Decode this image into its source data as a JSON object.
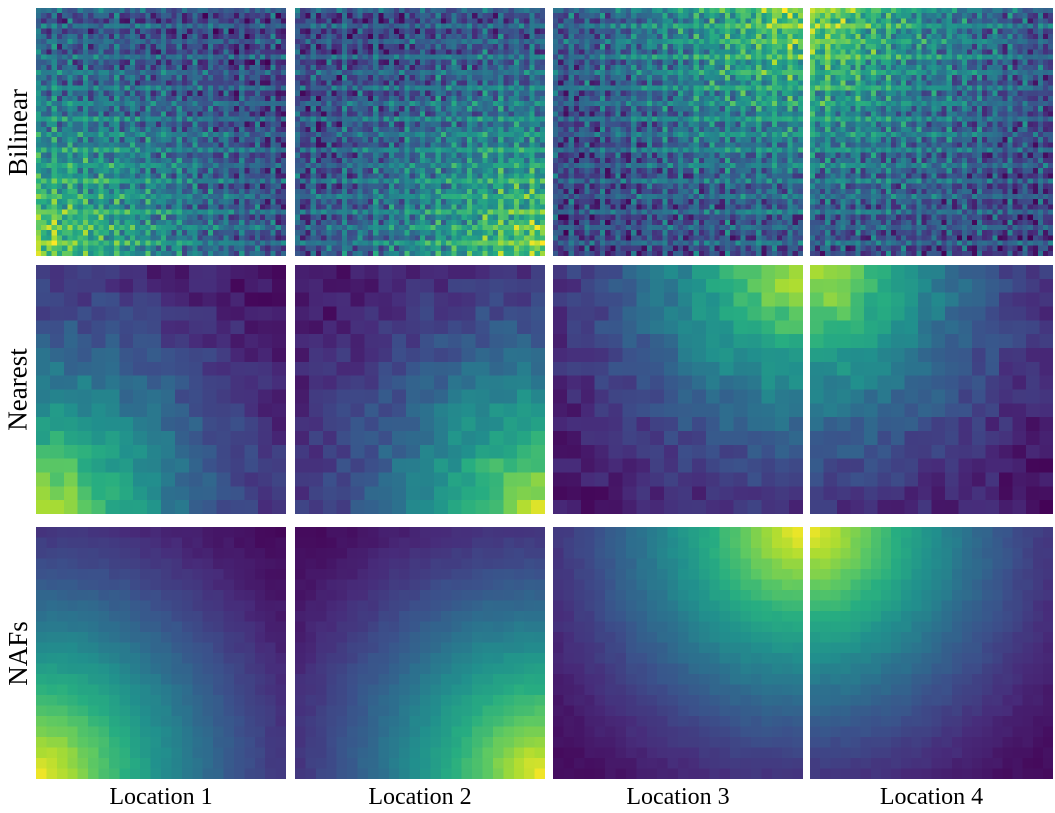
{
  "rows": [
    {
      "label": "Bilinear"
    },
    {
      "label": "Nearest"
    },
    {
      "label": "NAFs"
    }
  ],
  "columns": [
    {
      "label": "Location 1"
    },
    {
      "label": "Location 2"
    },
    {
      "label": "Location 3"
    },
    {
      "label": "Location 4"
    }
  ],
  "colormap": "viridis",
  "hotspot_corners": [
    "bottom-left",
    "bottom-right",
    "top-right",
    "top-left"
  ]
}
